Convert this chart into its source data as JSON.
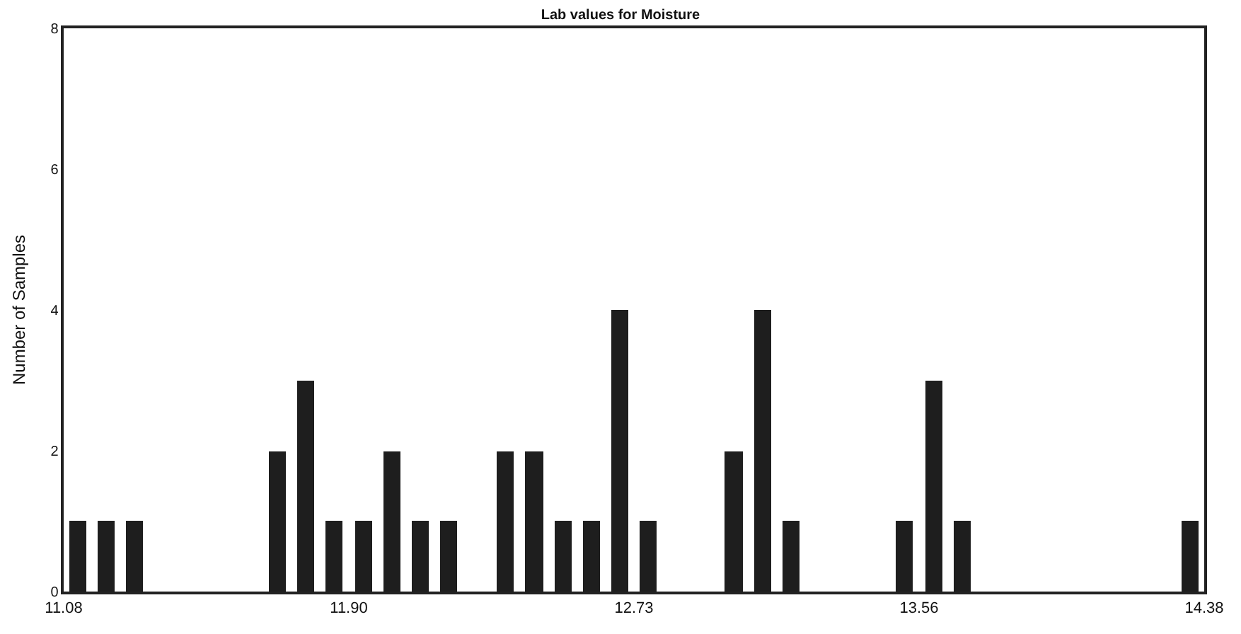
{
  "chart_data": {
    "type": "histogram",
    "title": "Lab values for Moisture",
    "ylabel": "Number of Samples",
    "bins": [
      11.08,
      11.1625,
      11.245,
      11.3275,
      11.41,
      11.4925,
      11.575,
      11.6575,
      11.74,
      11.8225,
      11.905,
      11.9875,
      12.07,
      12.1525,
      12.235,
      12.3175,
      12.4,
      12.4825,
      12.565,
      12.6475,
      12.73,
      12.8125,
      12.895,
      12.9775,
      13.06,
      13.1425,
      13.225,
      13.3075,
      13.39,
      13.4725,
      13.555,
      13.6375,
      13.72,
      13.8025,
      13.885,
      13.9675,
      14.05,
      14.1325,
      14.215,
      14.2975,
      14.38
    ],
    "values": [
      1,
      1,
      1,
      0,
      0,
      0,
      0,
      2,
      3,
      1,
      1,
      2,
      1,
      1,
      0,
      2,
      2,
      1,
      1,
      4,
      1,
      0,
      0,
      2,
      4,
      1,
      0,
      0,
      0,
      1,
      3,
      1,
      0,
      0,
      0,
      0,
      0,
      0,
      0,
      1
    ],
    "color": "#1e1e1e",
    "xlim": [
      11.08,
      14.38
    ],
    "xticks": [
      11.08,
      {
        "value": 11.905,
        "label": "11.90"
      },
      12.73,
      {
        "value": 13.555,
        "label": "13.56"
      },
      14.38
    ],
    "ylim": [
      0,
      8
    ],
    "yticks": [
      0,
      2,
      4,
      6,
      8
    ]
  }
}
